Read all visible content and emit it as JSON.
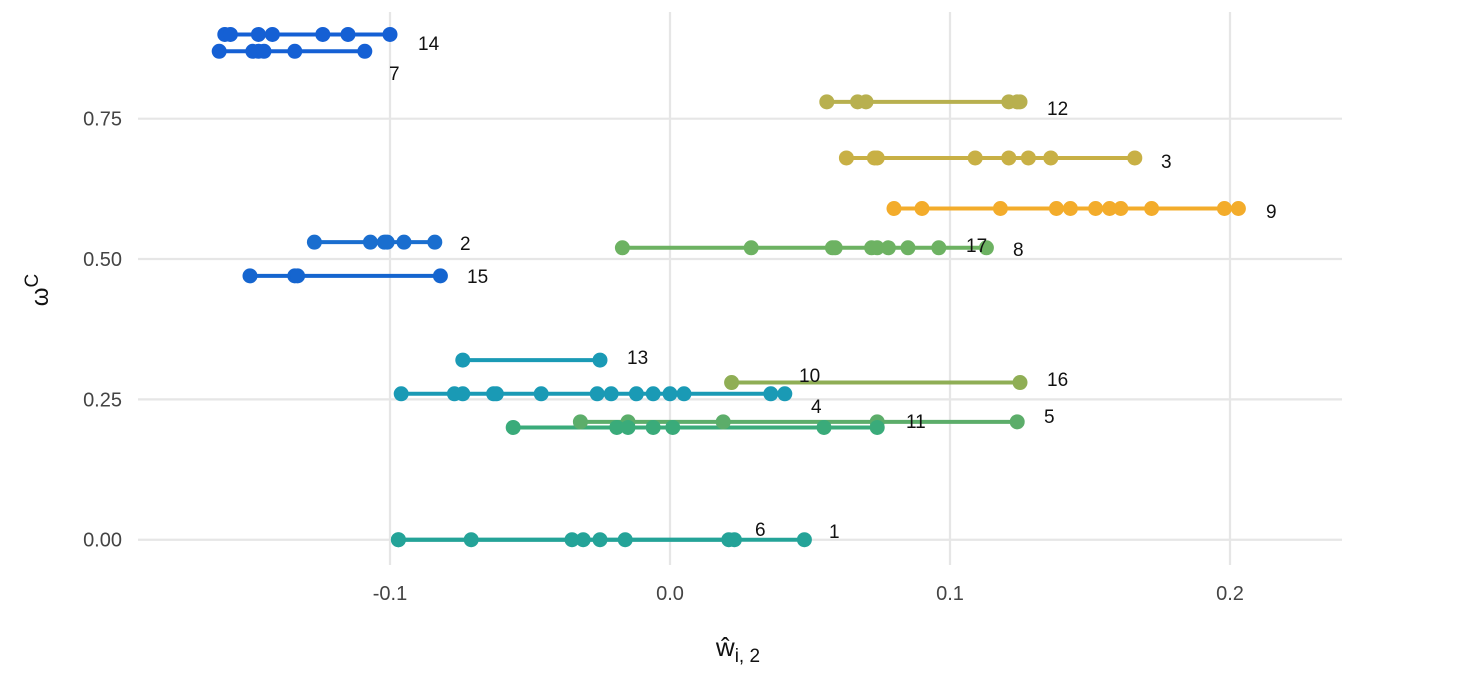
{
  "chart_data": {
    "type": "line",
    "xlabel": "ŵ",
    "xlabel_sub": "i, 2",
    "ylabel": "ω",
    "ylabel_sup": "C",
    "xlim": [
      -0.19,
      0.24
    ],
    "ylim": [
      -0.045,
      0.94
    ],
    "x_ticks": [
      -0.1,
      0.0,
      0.1,
      0.2
    ],
    "x_tick_labels": [
      "-0.1",
      "0.0",
      "0.1",
      "0.2"
    ],
    "y_ticks": [
      0.0,
      0.25,
      0.5,
      0.75
    ],
    "y_tick_labels": [
      "0.00",
      "0.25",
      "0.50",
      "0.75"
    ],
    "grid": true,
    "legend": "none",
    "series": [
      {
        "name": "14",
        "y": 0.9,
        "x": [
          -0.159,
          -0.157,
          -0.147,
          -0.142,
          -0.124,
          -0.115,
          -0.1
        ],
        "color": "#1560d4"
      },
      {
        "name": "7",
        "y": 0.87,
        "x": [
          -0.161,
          -0.149,
          -0.147,
          -0.145,
          -0.134,
          -0.109
        ],
        "color": "#1560d4"
      },
      {
        "name": "12",
        "y": 0.78,
        "x": [
          0.056,
          0.067,
          0.07,
          0.121,
          0.124,
          0.125
        ],
        "color": "#b8b04f"
      },
      {
        "name": "3",
        "y": 0.68,
        "x": [
          0.063,
          0.073,
          0.074,
          0.109,
          0.121,
          0.128,
          0.136,
          0.166
        ],
        "color": "#c8b045"
      },
      {
        "name": "9",
        "y": 0.59,
        "x": [
          0.08,
          0.09,
          0.118,
          0.138,
          0.143,
          0.152,
          0.157,
          0.161,
          0.172,
          0.198,
          0.203
        ],
        "color": "#f3ac2b"
      },
      {
        "name": "2",
        "y": 0.53,
        "x": [
          -0.127,
          -0.107,
          -0.102,
          -0.101,
          -0.095,
          -0.084
        ],
        "color": "#1a6ecf"
      },
      {
        "name": "8",
        "y": 0.52,
        "x": [
          -0.017,
          0.029,
          0.058,
          0.059,
          0.072,
          0.074,
          0.078,
          0.085,
          0.096,
          0.113
        ],
        "color": "#6db262"
      },
      {
        "name": "15",
        "y": 0.47,
        "x": [
          -0.15,
          -0.134,
          -0.133,
          -0.082
        ],
        "color": "#1565cf"
      },
      {
        "name": "13",
        "y": 0.32,
        "x": [
          -0.074,
          -0.025
        ],
        "color": "#1a9ab5"
      },
      {
        "name": "16",
        "y": 0.28,
        "x": [
          0.022,
          0.125
        ],
        "color": "#8fae55"
      },
      {
        "name": "4",
        "y": 0.26,
        "x": [
          -0.096,
          -0.077,
          -0.074,
          -0.063,
          -0.062,
          -0.046,
          -0.026,
          -0.021,
          -0.012,
          -0.006,
          0.0,
          0.005,
          0.036,
          0.041
        ],
        "color": "#1a9ab5"
      },
      {
        "name": "5",
        "y": 0.21,
        "x": [
          -0.032,
          -0.015,
          0.019,
          0.074,
          0.124
        ],
        "color": "#5cad6a"
      },
      {
        "name": "11",
        "y": 0.2,
        "x": [
          -0.056,
          -0.019,
          -0.015,
          -0.006,
          0.001,
          0.055,
          0.074
        ],
        "color": "#3aab7a"
      },
      {
        "name": "6",
        "y": 0.0,
        "x": [
          -0.097,
          -0.071,
          -0.035,
          -0.031,
          -0.025,
          -0.016,
          0.021,
          0.023
        ],
        "color": "#24a398"
      },
      {
        "name": "1",
        "y": 0.0,
        "x": [
          -0.097,
          0.048
        ],
        "color": "#24a398"
      },
      {
        "name": "10",
        "y": 0.21,
        "x": [
          -0.032,
          0.074
        ],
        "color": "#8fae55"
      },
      {
        "name": "17",
        "y": 0.52,
        "x": [
          -0.017,
          0.113
        ],
        "color": "#6db262"
      }
    ],
    "labels": [
      {
        "text": "14",
        "x": 0.097,
        "y": 0.905,
        "series": "14",
        "offset": "right-of-line"
      },
      {
        "text": "7",
        "x": 0.0,
        "y": 0.865,
        "series": "7",
        "offset": "end"
      },
      {
        "text": "12",
        "x": 0.0,
        "y": 0.795,
        "series": "12",
        "offset": "end"
      },
      {
        "text": "3",
        "x": 0.0,
        "y": 0.695,
        "series": "3",
        "offset": "end"
      },
      {
        "text": "9",
        "x": 0.0,
        "y": 0.6,
        "series": "9",
        "offset": "end"
      },
      {
        "text": "2",
        "x": 0.0,
        "y": 0.545,
        "series": "2",
        "offset": "end"
      },
      {
        "text": "17",
        "x": 0.0,
        "y": 0.545,
        "series": "17",
        "offset": "near-end"
      },
      {
        "text": "8",
        "x": 0.0,
        "y": 0.54,
        "series": "8",
        "offset": "end"
      },
      {
        "text": "15",
        "x": 0.0,
        "y": 0.485,
        "series": "15",
        "offset": "end"
      },
      {
        "text": "13",
        "x": 0.0,
        "y": 0.335,
        "series": "13",
        "offset": "end"
      },
      {
        "text": "10",
        "x": 0.0,
        "y": 0.3,
        "series": "10",
        "offset": "mid"
      },
      {
        "text": "16",
        "x": 0.0,
        "y": 0.3,
        "series": "16",
        "offset": "end"
      },
      {
        "text": "4",
        "x": 0.0,
        "y": 0.255,
        "series": "4",
        "offset": "end"
      },
      {
        "text": "11",
        "x": 0.0,
        "y": 0.225,
        "series": "11",
        "offset": "end"
      },
      {
        "text": "5",
        "x": 0.0,
        "y": 0.235,
        "series": "5",
        "offset": "end"
      },
      {
        "text": "6",
        "x": 0.0,
        "y": 0.025,
        "series": "6",
        "offset": "end"
      },
      {
        "text": "1",
        "x": 0.0,
        "y": 0.025,
        "series": "1",
        "offset": "end"
      }
    ]
  }
}
